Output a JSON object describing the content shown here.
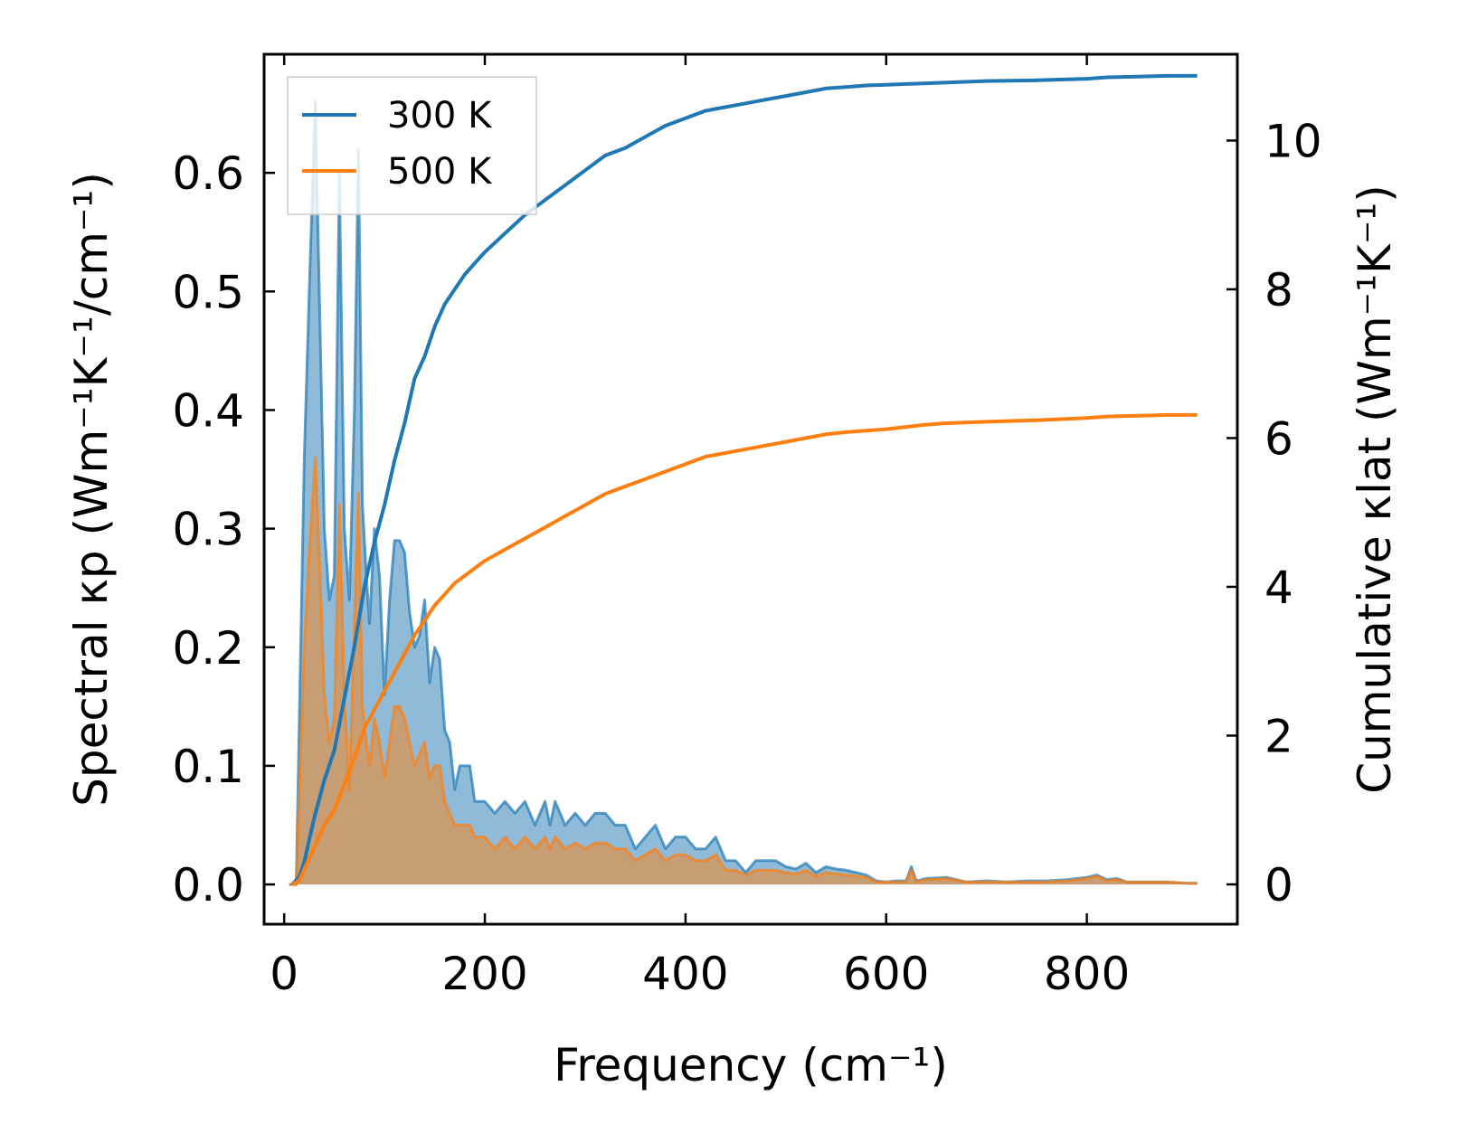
{
  "chart_data": {
    "type": "line",
    "xlabel": "Frequency (cm⁻¹)",
    "ylabel_left": "Spectral κp (Wm⁻¹K⁻¹/cm⁻¹)",
    "ylabel_right": "Cumulative κlat (Wm⁻¹K⁻¹)",
    "xlim": [
      -20,
      950
    ],
    "ylim_left": [
      -0.0335,
      0.7
    ],
    "ylim_right": [
      -0.535,
      11.16
    ],
    "x_ticks": [
      0,
      200,
      400,
      600,
      800
    ],
    "x_tick_labels": [
      "0",
      "200",
      "400",
      "600",
      "800"
    ],
    "y_left_ticks": [
      0.0,
      0.1,
      0.2,
      0.3,
      0.4,
      0.5,
      0.6
    ],
    "y_left_tick_labels": [
      "0.0",
      "0.1",
      "0.2",
      "0.3",
      "0.4",
      "0.5",
      "0.6"
    ],
    "y_right_ticks": [
      0,
      2,
      4,
      6,
      8,
      10
    ],
    "y_right_tick_labels": [
      "0",
      "2",
      "4",
      "6",
      "8",
      "10"
    ],
    "legend": {
      "position": "top-left",
      "entries": [
        "300 K",
        "500 K"
      ]
    },
    "colors": {
      "300 K": "#1f77b4",
      "500 K": "#ff7f0e"
    },
    "series": [
      {
        "name": "300 K",
        "axis": "left",
        "kind": "spectral-filled",
        "x": [
          5,
          12,
          20,
          25,
          31,
          35,
          40,
          45,
          50,
          55,
          60,
          65,
          70,
          74,
          78,
          82,
          85,
          90,
          95,
          100,
          105,
          110,
          115,
          120,
          125,
          130,
          135,
          140,
          145,
          150,
          155,
          160,
          165,
          170,
          175,
          180,
          185,
          190,
          200,
          210,
          220,
          230,
          240,
          250,
          260,
          265,
          270,
          280,
          290,
          300,
          310,
          320,
          330,
          340,
          350,
          360,
          370,
          380,
          390,
          400,
          410,
          420,
          430,
          440,
          450,
          460,
          470,
          480,
          490,
          500,
          510,
          520,
          530,
          540,
          550,
          560,
          570,
          580,
          590,
          600,
          610,
          620,
          625,
          630,
          640,
          660,
          680,
          700,
          720,
          740,
          760,
          780,
          800,
          810,
          820,
          830,
          840,
          860,
          880,
          900,
          910
        ],
        "y": [
          0,
          0,
          0.36,
          0.5,
          0.66,
          0.5,
          0.3,
          0.24,
          0.26,
          0.6,
          0.3,
          0.24,
          0.4,
          0.62,
          0.32,
          0.26,
          0.22,
          0.3,
          0.26,
          0.16,
          0.24,
          0.29,
          0.29,
          0.28,
          0.23,
          0.2,
          0.21,
          0.24,
          0.17,
          0.2,
          0.19,
          0.13,
          0.12,
          0.08,
          0.1,
          0.1,
          0.1,
          0.07,
          0.07,
          0.06,
          0.07,
          0.06,
          0.07,
          0.05,
          0.07,
          0.05,
          0.07,
          0.05,
          0.06,
          0.05,
          0.06,
          0.06,
          0.05,
          0.05,
          0.03,
          0.04,
          0.05,
          0.03,
          0.04,
          0.04,
          0.03,
          0.03,
          0.04,
          0.02,
          0.02,
          0.01,
          0.02,
          0.02,
          0.02,
          0.015,
          0.013,
          0.018,
          0.01,
          0.015,
          0.013,
          0.012,
          0.01,
          0.008,
          0.003,
          0.002,
          0.003,
          0.003,
          0.015,
          0.003,
          0.005,
          0.006,
          0.002,
          0.003,
          0.002,
          0.003,
          0.003,
          0.004,
          0.006,
          0.008,
          0.004,
          0.005,
          0.002,
          0.002,
          0.002,
          0.001,
          0.001
        ]
      },
      {
        "name": "500 K",
        "axis": "left",
        "kind": "spectral-filled",
        "x": [
          5,
          12,
          20,
          25,
          31,
          35,
          40,
          45,
          50,
          55,
          60,
          65,
          70,
          74,
          78,
          82,
          85,
          90,
          95,
          100,
          105,
          110,
          115,
          120,
          125,
          130,
          135,
          140,
          145,
          150,
          155,
          160,
          165,
          170,
          175,
          180,
          185,
          190,
          200,
          210,
          220,
          230,
          240,
          250,
          260,
          265,
          270,
          280,
          290,
          300,
          310,
          320,
          330,
          340,
          350,
          360,
          370,
          380,
          390,
          400,
          410,
          420,
          430,
          440,
          450,
          460,
          470,
          480,
          490,
          500,
          510,
          520,
          530,
          540,
          550,
          560,
          570,
          580,
          590,
          600,
          610,
          620,
          625,
          630,
          640,
          660,
          680,
          700,
          720,
          740,
          760,
          780,
          800,
          810,
          820,
          830,
          840,
          860,
          880,
          900,
          910
        ],
        "y": [
          0,
          0,
          0.2,
          0.28,
          0.36,
          0.28,
          0.16,
          0.12,
          0.14,
          0.32,
          0.16,
          0.08,
          0.22,
          0.33,
          0.15,
          0.12,
          0.1,
          0.14,
          0.12,
          0.09,
          0.12,
          0.15,
          0.15,
          0.14,
          0.12,
          0.1,
          0.11,
          0.12,
          0.09,
          0.1,
          0.1,
          0.07,
          0.06,
          0.05,
          0.05,
          0.05,
          0.05,
          0.04,
          0.04,
          0.03,
          0.04,
          0.03,
          0.04,
          0.03,
          0.04,
          0.03,
          0.04,
          0.03,
          0.035,
          0.03,
          0.035,
          0.035,
          0.03,
          0.03,
          0.02,
          0.025,
          0.03,
          0.02,
          0.025,
          0.025,
          0.02,
          0.02,
          0.025,
          0.012,
          0.012,
          0.008,
          0.012,
          0.012,
          0.012,
          0.01,
          0.009,
          0.012,
          0.007,
          0.01,
          0.009,
          0.008,
          0.007,
          0.006,
          0.002,
          0.002,
          0.002,
          0.002,
          0.012,
          0.002,
          0.004,
          0.005,
          0.002,
          0.002,
          0.002,
          0.002,
          0.002,
          0.003,
          0.005,
          0.007,
          0.003,
          0.004,
          0.002,
          0.002,
          0.002,
          0.001,
          0.001
        ]
      },
      {
        "name": "300 K",
        "axis": "right",
        "kind": "cumulative",
        "x": [
          8,
          15,
          20,
          25,
          30,
          40,
          50,
          60,
          70,
          80,
          90,
          100,
          110,
          120,
          130,
          140,
          150,
          160,
          170,
          180,
          190,
          200,
          220,
          240,
          260,
          280,
          300,
          320,
          340,
          360,
          380,
          400,
          420,
          440,
          460,
          480,
          500,
          520,
          540,
          560,
          580,
          600,
          620,
          640,
          660,
          700,
          750,
          800,
          820,
          850,
          880,
          910
        ],
        "y": [
          0,
          0.1,
          0.3,
          0.6,
          0.9,
          1.4,
          1.8,
          2.5,
          3.2,
          4.0,
          4.6,
          5.1,
          5.7,
          6.2,
          6.8,
          7.1,
          7.5,
          7.8,
          8.0,
          8.2,
          8.35,
          8.5,
          8.75,
          9.0,
          9.2,
          9.4,
          9.6,
          9.8,
          9.9,
          10.05,
          10.2,
          10.3,
          10.4,
          10.45,
          10.5,
          10.55,
          10.6,
          10.65,
          10.7,
          10.72,
          10.74,
          10.75,
          10.76,
          10.77,
          10.78,
          10.8,
          10.81,
          10.83,
          10.85,
          10.86,
          10.87,
          10.87
        ]
      },
      {
        "name": "500 K",
        "axis": "right",
        "kind": "cumulative",
        "x": [
          8,
          15,
          20,
          25,
          30,
          40,
          50,
          60,
          70,
          80,
          90,
          100,
          110,
          120,
          130,
          140,
          150,
          160,
          170,
          180,
          190,
          200,
          220,
          240,
          260,
          280,
          300,
          320,
          340,
          360,
          380,
          400,
          420,
          440,
          460,
          480,
          500,
          520,
          540,
          560,
          580,
          600,
          620,
          640,
          660,
          700,
          750,
          800,
          820,
          850,
          880,
          910
        ],
        "y": [
          0,
          0.05,
          0.2,
          0.35,
          0.5,
          0.8,
          1.0,
          1.35,
          1.7,
          2.1,
          2.35,
          2.6,
          2.85,
          3.1,
          3.35,
          3.55,
          3.75,
          3.9,
          4.05,
          4.15,
          4.25,
          4.35,
          4.5,
          4.65,
          4.8,
          4.95,
          5.1,
          5.25,
          5.35,
          5.45,
          5.55,
          5.65,
          5.75,
          5.8,
          5.85,
          5.9,
          5.95,
          6.0,
          6.05,
          6.08,
          6.1,
          6.12,
          6.15,
          6.18,
          6.2,
          6.22,
          6.24,
          6.27,
          6.29,
          6.3,
          6.31,
          6.31
        ]
      }
    ]
  }
}
